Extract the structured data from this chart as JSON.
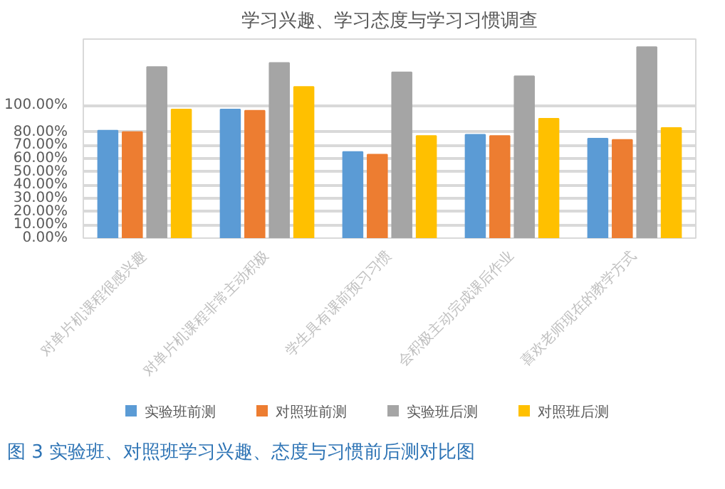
{
  "chart_data": {
    "type": "bar",
    "title": "学习兴趣、学习态度与学习习惯调查",
    "categories": [
      "对单片机课程很感兴趣",
      "对单片机课程非常主动积极",
      "学生具有课前预习习惯",
      "会积极主动完成课后作业",
      "喜欢老师现在的教学方式"
    ],
    "series": [
      {
        "name": "实验班前测",
        "color": "#5b9bd5",
        "values": [
          81,
          97,
          65,
          78,
          75
        ]
      },
      {
        "name": "对照班前测",
        "color": "#ed7d31",
        "values": [
          80,
          96,
          63,
          77,
          74
        ]
      },
      {
        "name": "实验班后测",
        "color": "#a5a5a5",
        "values": [
          129,
          132,
          125,
          122,
          144
        ]
      },
      {
        "name": "对照班后测",
        "color": "#ffc000",
        "values": [
          97,
          114,
          77,
          90,
          83
        ]
      }
    ],
    "ylim": [
      0,
      150
    ],
    "yticks": [
      {
        "value": 0,
        "label": "0.00%"
      },
      {
        "value": 10,
        "label": "10.00%"
      },
      {
        "value": 20,
        "label": "20.00%"
      },
      {
        "value": 30,
        "label": "30.00%"
      },
      {
        "value": 40,
        "label": "40.00%"
      },
      {
        "value": 50,
        "label": "50.00%"
      },
      {
        "value": 60,
        "label": "60.00%"
      },
      {
        "value": 70,
        "label": "70.00%"
      },
      {
        "value": 80,
        "label": "80.00%"
      },
      {
        "value": 100,
        "label": "100.00%"
      }
    ],
    "grid": "y",
    "legend": "bottom",
    "annotations": [
      "图 3 实验班、对照班学习兴趣、态度与习惯前后测对比图"
    ]
  }
}
